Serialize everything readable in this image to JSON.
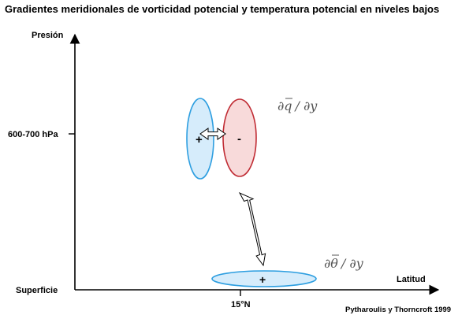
{
  "title": "Gradientes meridionales de vorticidad potencial y temperatura potencial en niveles bajos",
  "axes": {
    "y_label": "Presión",
    "x_label": "Latitud",
    "y_tick_upper": "600-700 hPa",
    "y_tick_lower": "Superficie",
    "x_tick": "15°N"
  },
  "anomalies": {
    "upper_positive_sign": "+",
    "upper_negative_sign": "-",
    "surface_positive_sign": "+"
  },
  "expressions": {
    "pv_gradient_d1": "∂",
    "pv_gradient_var": "q",
    "pv_gradient_rest": "/ ∂y",
    "theta_gradient_d1": "∂",
    "theta_gradient_var": "θ",
    "theta_gradient_rest": "/ ∂y"
  },
  "credit": "Pytharoulis y Thorncroft 1999",
  "colors": {
    "blue_fill": "#d6ecfb",
    "blue_stroke": "#2d9ee0",
    "red_fill": "#f8dada",
    "red_stroke": "#c02c34",
    "axis": "#000000"
  }
}
